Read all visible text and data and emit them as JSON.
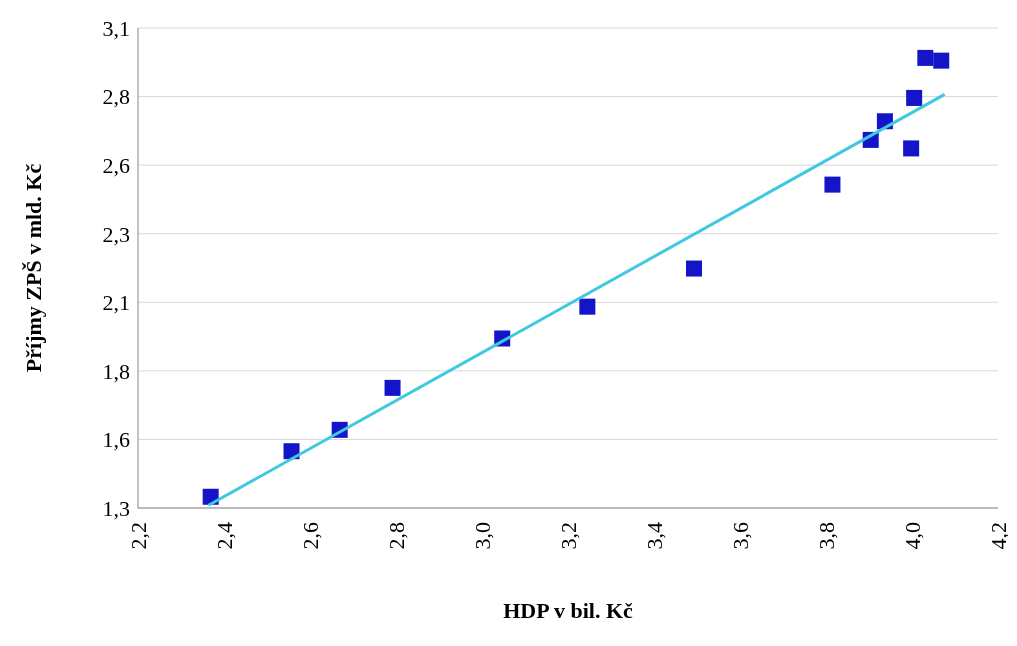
{
  "chart_data": {
    "type": "scatter",
    "xlabel": "HDP v bil. Kč",
    "ylabel": "Příjmy ZPŠ v mld. Kč",
    "xlim": [
      2.2,
      4.2
    ],
    "xticks": [
      {
        "value": 2.2,
        "label": "2,2"
      },
      {
        "value": 2.4,
        "label": "2,4"
      },
      {
        "value": 2.6,
        "label": "2,6"
      },
      {
        "value": 2.8,
        "label": "2,8"
      },
      {
        "value": 3.0,
        "label": "3,0"
      },
      {
        "value": 3.2,
        "label": "3,2"
      },
      {
        "value": 3.4,
        "label": "3,4"
      },
      {
        "value": 3.6,
        "label": "3,6"
      },
      {
        "value": 3.8,
        "label": "3,8"
      },
      {
        "value": 4.0,
        "label": "4,0"
      },
      {
        "value": 4.2,
        "label": "4,2"
      }
    ],
    "ylim": [
      1.3,
      3.05
    ],
    "yticks": [
      {
        "value": 1.3,
        "label": "1,3"
      },
      {
        "value": 1.55,
        "label": "1,6"
      },
      {
        "value": 1.8,
        "label": "1,8"
      },
      {
        "value": 2.05,
        "label": "2,1"
      },
      {
        "value": 2.3,
        "label": "2,3"
      },
      {
        "value": 2.55,
        "label": "2,6"
      },
      {
        "value": 2.8,
        "label": "2,8"
      },
      {
        "value": 3.05,
        "label": "3,1"
      }
    ],
    "grid": "y",
    "legend": false,
    "series": [
      {
        "type": "scatter",
        "marker": "square",
        "color": "#1414c8",
        "x": [
          2.369,
          2.557,
          2.669,
          2.792,
          3.047,
          3.245,
          3.493,
          3.815,
          3.904,
          3.937,
          3.998,
          4.005,
          4.031,
          4.068
        ],
        "values": [
          1.341,
          1.507,
          1.585,
          1.738,
          1.918,
          2.034,
          2.173,
          2.479,
          2.642,
          2.71,
          2.611,
          2.795,
          2.941,
          2.931
        ]
      },
      {
        "type": "line",
        "marker": "none",
        "color": "#40c8e0",
        "x": [
          2.364,
          4.076
        ],
        "values": [
          1.31,
          2.808
        ]
      }
    ]
  }
}
